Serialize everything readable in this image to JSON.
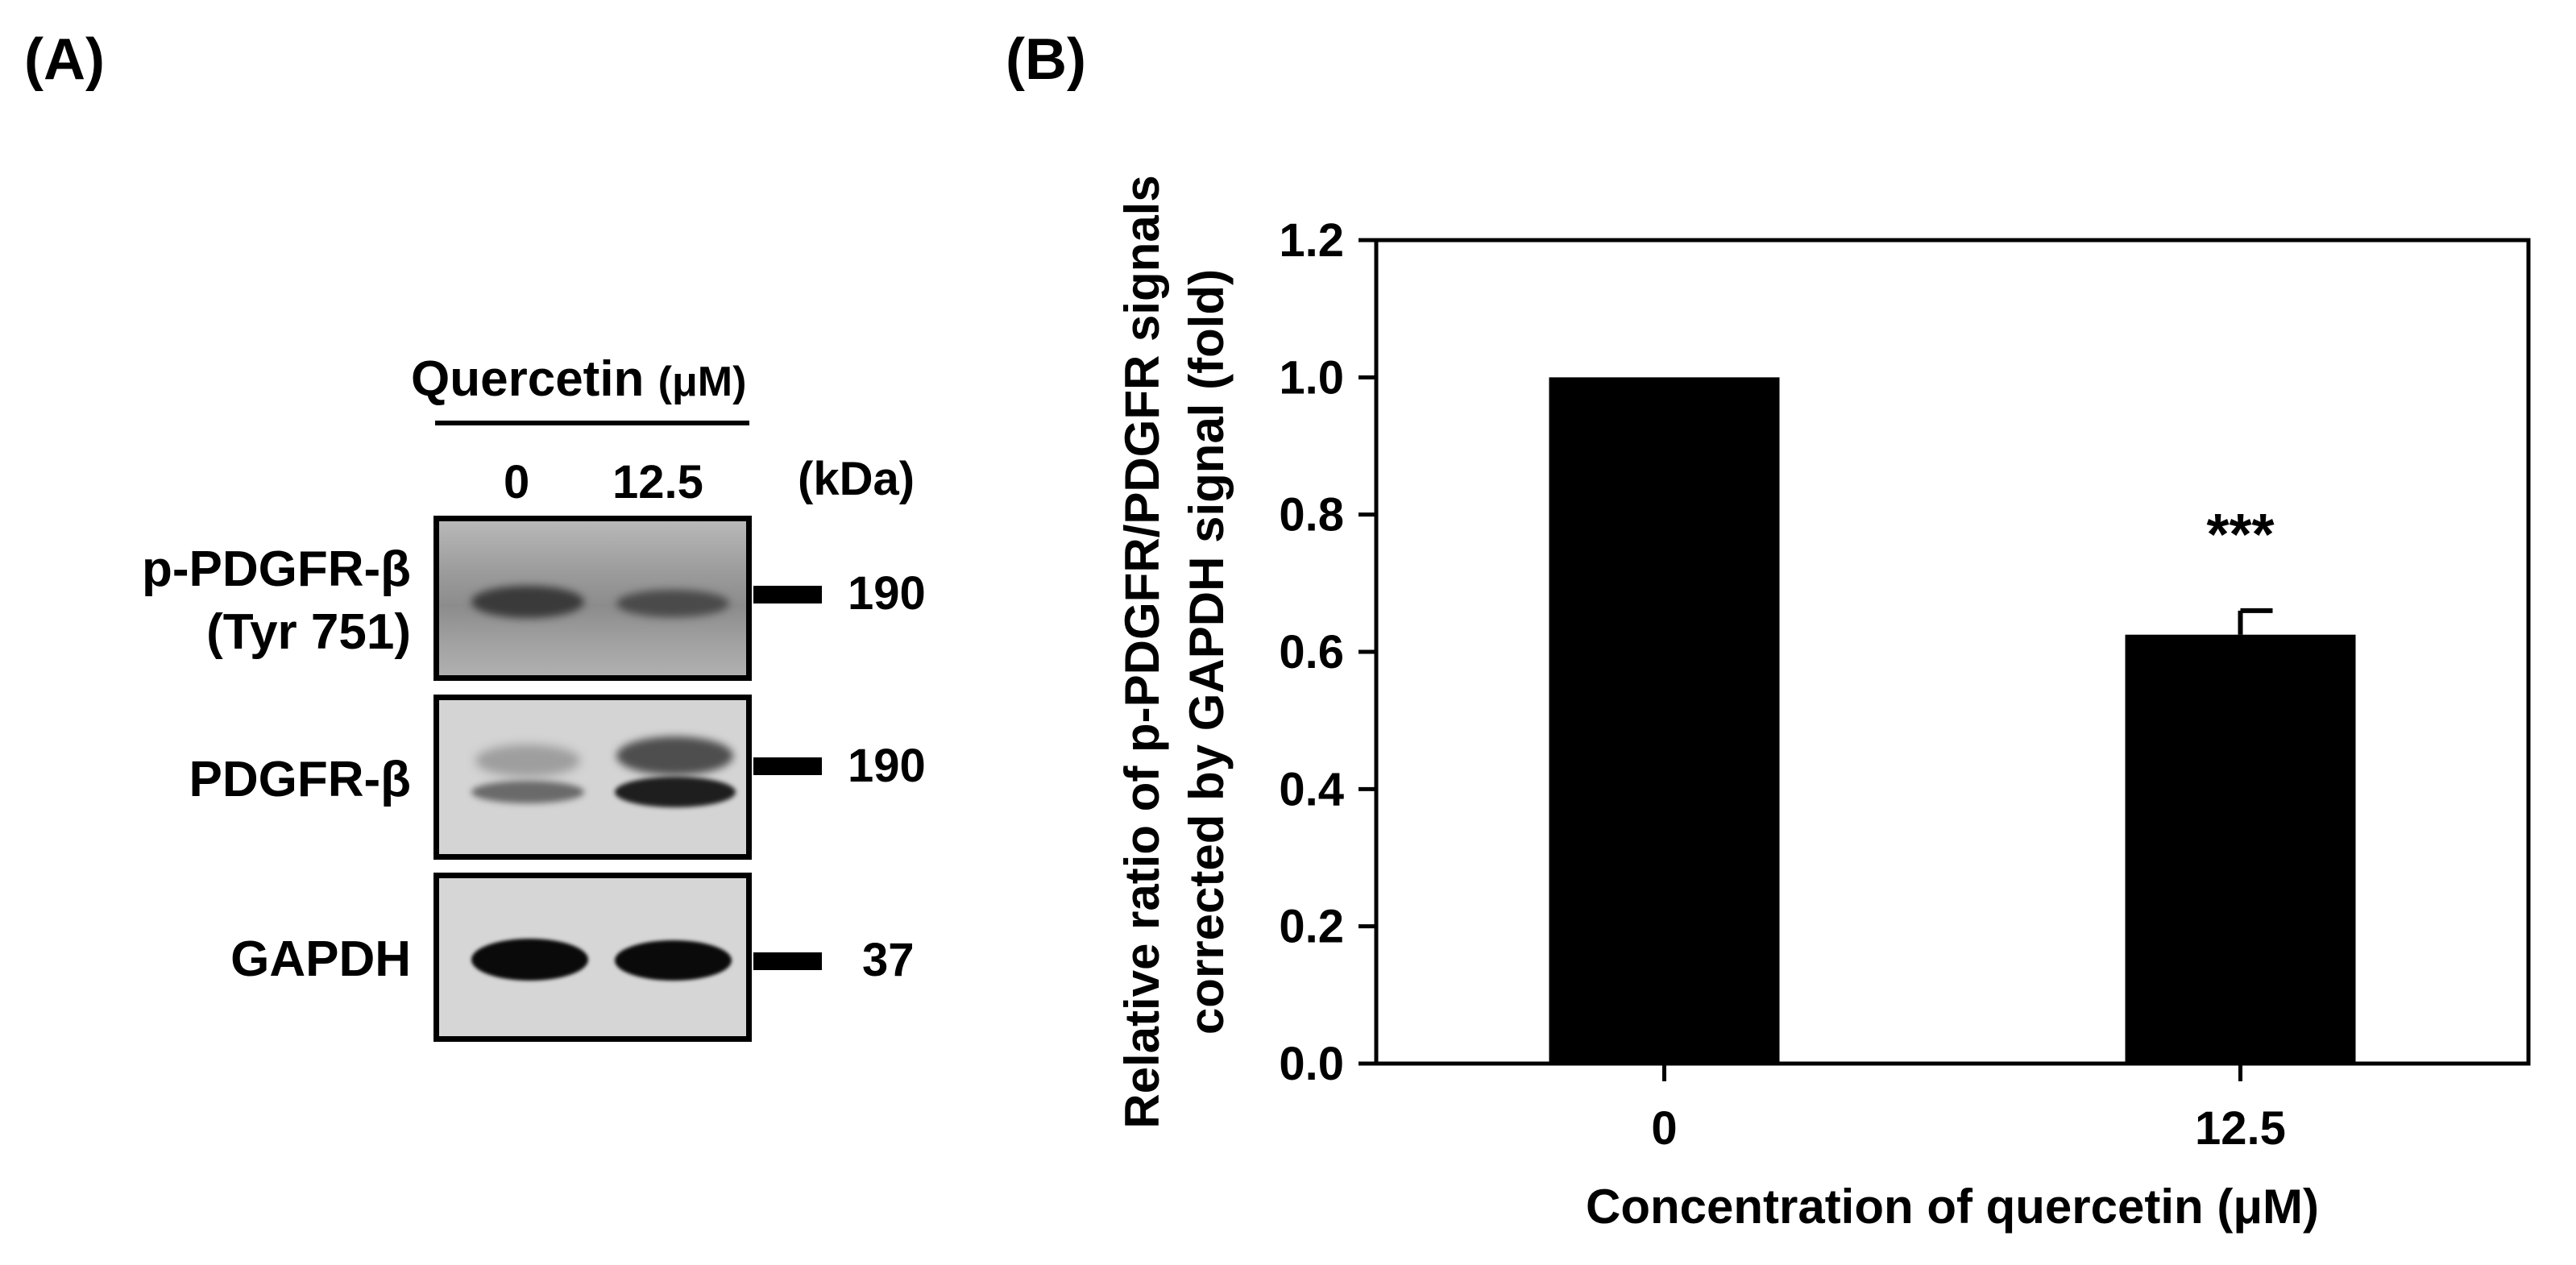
{
  "panel_a": {
    "label": "(A)",
    "treatment": "Quercetin",
    "treatment_unit": "(μM)",
    "lanes": [
      "0",
      "12.5"
    ],
    "kda_header": "(kDa)",
    "blots": [
      {
        "name_line1": "p-PDGFR-β",
        "name_line2": "(Tyr 751)",
        "size": "190"
      },
      {
        "name_line1": "PDGFR-β",
        "name_line2": "",
        "size": "190"
      },
      {
        "name_line1": "GAPDH",
        "name_line2": "",
        "size": "37"
      }
    ]
  },
  "panel_b": {
    "label": "(B)"
  },
  "chart_data": {
    "type": "bar",
    "categories": [
      "0",
      "12.5"
    ],
    "values": [
      1.0,
      0.625
    ],
    "errors": [
      0,
      0.035
    ],
    "annotations": [
      "",
      "***"
    ],
    "ylabel_line1": "Relative ratio of p-PDGFR/PDGFR signals",
    "ylabel_line2": "corrected by GAPDH signal (fold)",
    "xlabel": "Concentration of quercetin (μM)",
    "ylim": [
      0,
      1.2
    ],
    "yticks": [
      "0.0",
      "0.2",
      "0.4",
      "0.6",
      "0.8",
      "1.0",
      "1.2"
    ],
    "grid": false,
    "bar_color": "#000000"
  }
}
